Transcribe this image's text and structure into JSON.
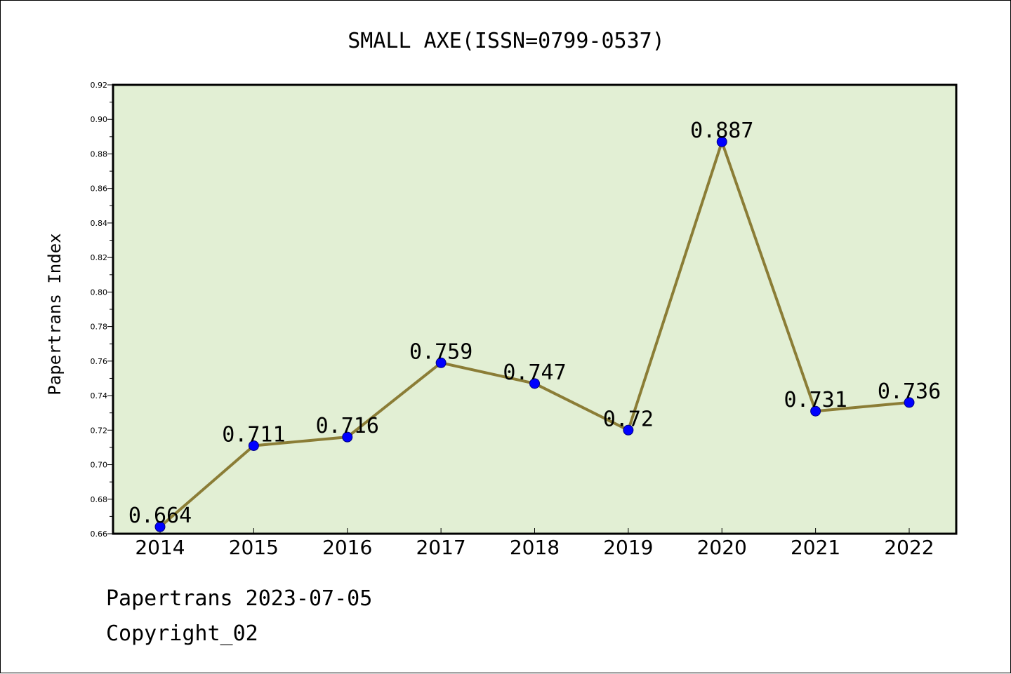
{
  "chart_data": {
    "type": "line",
    "title": "SMALL AXE(ISSN=0799-0537)",
    "xlabel": "",
    "ylabel": "Papertrans Index",
    "categories": [
      "2014",
      "2015",
      "2016",
      "2017",
      "2018",
      "2019",
      "2020",
      "2021",
      "2022"
    ],
    "series": [
      {
        "values": [
          0.664,
          0.711,
          0.716,
          0.759,
          0.747,
          0.72,
          0.887,
          0.731,
          0.736
        ],
        "data_labels": [
          "0.664",
          "0.711",
          "0.716",
          "0.759",
          "0.747",
          "0.72",
          "0.887",
          "0.731",
          "0.736"
        ]
      }
    ],
    "ylim": [
      0.66,
      0.92
    ],
    "yticks": [
      "0.66",
      "0.68",
      "0.70",
      "0.72",
      "0.74",
      "0.76",
      "0.78",
      "0.80",
      "0.82",
      "0.84",
      "0.86",
      "0.88",
      "0.90",
      "0.92"
    ],
    "grid": false,
    "legend": "none",
    "colors": {
      "plot_background": "#e2efd4",
      "line": "#8b7d36",
      "marker": "#0000ff"
    }
  },
  "footer": {
    "date_line": "Papertrans 2023-07-05",
    "copyright": "Copyright_02"
  }
}
